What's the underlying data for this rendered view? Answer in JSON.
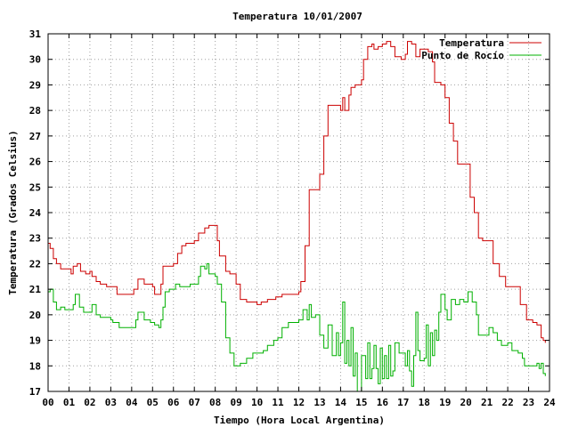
{
  "chart_data": {
    "type": "line",
    "title": "Temperatura 10/01/2007",
    "xlabel": "Tiempo (Hora Local Argentina)",
    "ylabel": "Temperatura (Grados Celsius)",
    "xlim": [
      0,
      24
    ],
    "ylim": [
      17,
      31
    ],
    "x_ticks": [
      0,
      1,
      2,
      3,
      4,
      5,
      6,
      7,
      8,
      9,
      10,
      11,
      12,
      13,
      14,
      15,
      16,
      17,
      18,
      19,
      20,
      21,
      22,
      23,
      24
    ],
    "x_tick_labels": [
      "00",
      "01",
      "02",
      "03",
      "04",
      "05",
      "06",
      "07",
      "08",
      "09",
      "10",
      "11",
      "12",
      "13",
      "14",
      "15",
      "16",
      "17",
      "18",
      "19",
      "20",
      "21",
      "22",
      "23",
      "24"
    ],
    "y_ticks": [
      17,
      18,
      19,
      20,
      21,
      22,
      23,
      24,
      25,
      26,
      27,
      28,
      29,
      30,
      31
    ],
    "grid": true,
    "legend_position": "top-right",
    "series": [
      {
        "name": "Temperatura",
        "color": "#cc0000",
        "points": [
          [
            0.0,
            22.8
          ],
          [
            0.1,
            22.6
          ],
          [
            0.25,
            22.2
          ],
          [
            0.4,
            22.0
          ],
          [
            0.6,
            21.8
          ],
          [
            0.9,
            21.8
          ],
          [
            1.1,
            21.6
          ],
          [
            1.2,
            21.9
          ],
          [
            1.4,
            22.0
          ],
          [
            1.55,
            21.7
          ],
          [
            1.8,
            21.6
          ],
          [
            2.0,
            21.7
          ],
          [
            2.1,
            21.5
          ],
          [
            2.3,
            21.3
          ],
          [
            2.5,
            21.2
          ],
          [
            2.8,
            21.1
          ],
          [
            3.1,
            21.1
          ],
          [
            3.3,
            20.8
          ],
          [
            3.7,
            20.8
          ],
          [
            4.0,
            20.8
          ],
          [
            4.1,
            21.0
          ],
          [
            4.3,
            21.4
          ],
          [
            4.6,
            21.2
          ],
          [
            5.0,
            21.1
          ],
          [
            5.1,
            20.8
          ],
          [
            5.3,
            20.8
          ],
          [
            5.4,
            21.2
          ],
          [
            5.5,
            21.9
          ],
          [
            5.7,
            21.9
          ],
          [
            6.0,
            22.0
          ],
          [
            6.2,
            22.4
          ],
          [
            6.4,
            22.7
          ],
          [
            6.6,
            22.8
          ],
          [
            7.0,
            22.9
          ],
          [
            7.2,
            23.2
          ],
          [
            7.5,
            23.4
          ],
          [
            7.7,
            23.5
          ],
          [
            8.0,
            23.5
          ],
          [
            8.1,
            22.9
          ],
          [
            8.2,
            22.3
          ],
          [
            8.5,
            21.7
          ],
          [
            8.7,
            21.6
          ],
          [
            9.0,
            21.2
          ],
          [
            9.2,
            20.6
          ],
          [
            9.5,
            20.5
          ],
          [
            9.8,
            20.5
          ],
          [
            10.0,
            20.4
          ],
          [
            10.2,
            20.5
          ],
          [
            10.5,
            20.6
          ],
          [
            10.9,
            20.7
          ],
          [
            11.2,
            20.8
          ],
          [
            11.7,
            20.8
          ],
          [
            12.0,
            20.9
          ],
          [
            12.1,
            21.3
          ],
          [
            12.3,
            22.7
          ],
          [
            12.5,
            24.9
          ],
          [
            12.9,
            24.9
          ],
          [
            13.0,
            25.5
          ],
          [
            13.2,
            27.0
          ],
          [
            13.4,
            28.2
          ],
          [
            13.8,
            28.2
          ],
          [
            14.0,
            28.0
          ],
          [
            14.1,
            28.5
          ],
          [
            14.2,
            28.0
          ],
          [
            14.4,
            28.6
          ],
          [
            14.5,
            28.9
          ],
          [
            14.7,
            29.0
          ],
          [
            15.0,
            29.2
          ],
          [
            15.1,
            30.0
          ],
          [
            15.3,
            30.5
          ],
          [
            15.5,
            30.6
          ],
          [
            15.6,
            30.4
          ],
          [
            15.8,
            30.5
          ],
          [
            16.0,
            30.6
          ],
          [
            16.2,
            30.7
          ],
          [
            16.4,
            30.5
          ],
          [
            16.6,
            30.1
          ],
          [
            16.9,
            30.0
          ],
          [
            17.1,
            30.2
          ],
          [
            17.2,
            30.7
          ],
          [
            17.4,
            30.6
          ],
          [
            17.6,
            30.1
          ],
          [
            17.8,
            30.4
          ],
          [
            18.0,
            30.4
          ],
          [
            18.2,
            30.3
          ],
          [
            18.4,
            29.9
          ],
          [
            18.5,
            29.1
          ],
          [
            18.8,
            29.0
          ],
          [
            19.0,
            28.5
          ],
          [
            19.2,
            27.5
          ],
          [
            19.4,
            26.8
          ],
          [
            19.6,
            25.9
          ],
          [
            19.8,
            25.9
          ],
          [
            20.0,
            25.9
          ],
          [
            20.2,
            24.6
          ],
          [
            20.4,
            24.0
          ],
          [
            20.6,
            23.0
          ],
          [
            20.8,
            22.9
          ],
          [
            21.0,
            22.9
          ],
          [
            21.3,
            22.0
          ],
          [
            21.6,
            21.5
          ],
          [
            21.9,
            21.1
          ],
          [
            22.3,
            21.1
          ],
          [
            22.6,
            20.4
          ],
          [
            22.9,
            19.8
          ],
          [
            23.2,
            19.7
          ],
          [
            23.4,
            19.6
          ],
          [
            23.6,
            19.1
          ],
          [
            23.7,
            19.0
          ],
          [
            23.8,
            18.9
          ]
        ]
      },
      {
        "name": "Punto de Rocío",
        "color": "#00b000",
        "points": [
          [
            0.0,
            20.9
          ],
          [
            0.1,
            21.0
          ],
          [
            0.25,
            20.5
          ],
          [
            0.4,
            20.2
          ],
          [
            0.6,
            20.3
          ],
          [
            0.8,
            20.2
          ],
          [
            1.0,
            20.2
          ],
          [
            1.2,
            20.4
          ],
          [
            1.3,
            20.8
          ],
          [
            1.5,
            20.3
          ],
          [
            1.7,
            20.1
          ],
          [
            2.0,
            20.1
          ],
          [
            2.1,
            20.4
          ],
          [
            2.3,
            20.0
          ],
          [
            2.5,
            19.9
          ],
          [
            2.7,
            19.9
          ],
          [
            3.0,
            19.8
          ],
          [
            3.1,
            19.7
          ],
          [
            3.4,
            19.5
          ],
          [
            3.8,
            19.5
          ],
          [
            4.0,
            19.5
          ],
          [
            4.2,
            19.8
          ],
          [
            4.3,
            20.1
          ],
          [
            4.5,
            20.1
          ],
          [
            4.6,
            19.8
          ],
          [
            4.9,
            19.7
          ],
          [
            5.1,
            19.6
          ],
          [
            5.3,
            19.5
          ],
          [
            5.4,
            19.8
          ],
          [
            5.5,
            20.3
          ],
          [
            5.6,
            20.9
          ],
          [
            5.8,
            21.0
          ],
          [
            6.0,
            21.0
          ],
          [
            6.1,
            21.2
          ],
          [
            6.3,
            21.1
          ],
          [
            6.5,
            21.1
          ],
          [
            6.8,
            21.2
          ],
          [
            7.0,
            21.2
          ],
          [
            7.2,
            21.5
          ],
          [
            7.3,
            21.9
          ],
          [
            7.5,
            21.8
          ],
          [
            7.6,
            22.0
          ],
          [
            7.7,
            21.6
          ],
          [
            8.0,
            21.5
          ],
          [
            8.1,
            21.2
          ],
          [
            8.3,
            20.5
          ],
          [
            8.5,
            19.1
          ],
          [
            8.7,
            18.5
          ],
          [
            8.9,
            18.0
          ],
          [
            9.2,
            18.1
          ],
          [
            9.5,
            18.3
          ],
          [
            9.8,
            18.5
          ],
          [
            10.0,
            18.5
          ],
          [
            10.3,
            18.6
          ],
          [
            10.5,
            18.8
          ],
          [
            10.8,
            19.0
          ],
          [
            11.0,
            19.1
          ],
          [
            11.2,
            19.5
          ],
          [
            11.5,
            19.7
          ],
          [
            11.8,
            19.7
          ],
          [
            12.0,
            19.8
          ],
          [
            12.2,
            20.2
          ],
          [
            12.4,
            19.8
          ],
          [
            12.5,
            20.4
          ],
          [
            12.6,
            19.9
          ],
          [
            12.8,
            20.0
          ],
          [
            13.0,
            19.2
          ],
          [
            13.2,
            18.7
          ],
          [
            13.4,
            19.6
          ],
          [
            13.6,
            18.4
          ],
          [
            13.8,
            19.3
          ],
          [
            13.9,
            18.4
          ],
          [
            14.0,
            18.9
          ],
          [
            14.1,
            20.5
          ],
          [
            14.2,
            18.1
          ],
          [
            14.3,
            19.0
          ],
          [
            14.4,
            18.0
          ],
          [
            14.5,
            19.5
          ],
          [
            14.6,
            17.6
          ],
          [
            14.7,
            18.5
          ],
          [
            14.8,
            17.0
          ],
          [
            15.0,
            18.4
          ],
          [
            15.2,
            17.5
          ],
          [
            15.3,
            18.9
          ],
          [
            15.4,
            17.5
          ],
          [
            15.5,
            17.9
          ],
          [
            15.6,
            18.8
          ],
          [
            15.7,
            17.9
          ],
          [
            15.8,
            17.3
          ],
          [
            15.9,
            18.7
          ],
          [
            16.0,
            17.5
          ],
          [
            16.1,
            18.4
          ],
          [
            16.2,
            17.5
          ],
          [
            16.3,
            18.8
          ],
          [
            16.4,
            17.6
          ],
          [
            16.5,
            17.8
          ],
          [
            16.6,
            18.9
          ],
          [
            16.8,
            18.5
          ],
          [
            17.0,
            18.5
          ],
          [
            17.1,
            18.0
          ],
          [
            17.2,
            18.6
          ],
          [
            17.3,
            17.8
          ],
          [
            17.4,
            17.2
          ],
          [
            17.5,
            18.4
          ],
          [
            17.6,
            20.1
          ],
          [
            17.7,
            18.6
          ],
          [
            17.8,
            18.2
          ],
          [
            18.0,
            18.3
          ],
          [
            18.1,
            19.6
          ],
          [
            18.2,
            18.0
          ],
          [
            18.3,
            19.3
          ],
          [
            18.4,
            18.4
          ],
          [
            18.5,
            19.4
          ],
          [
            18.6,
            19.0
          ],
          [
            18.7,
            20.1
          ],
          [
            18.8,
            20.8
          ],
          [
            19.0,
            20.2
          ],
          [
            19.1,
            19.8
          ],
          [
            19.3,
            20.6
          ],
          [
            19.5,
            20.4
          ],
          [
            19.7,
            20.6
          ],
          [
            19.9,
            20.5
          ],
          [
            20.1,
            20.9
          ],
          [
            20.3,
            20.5
          ],
          [
            20.5,
            20.0
          ],
          [
            20.6,
            19.2
          ],
          [
            20.8,
            19.2
          ],
          [
            21.0,
            19.2
          ],
          [
            21.1,
            19.5
          ],
          [
            21.3,
            19.3
          ],
          [
            21.5,
            19.0
          ],
          [
            21.7,
            18.8
          ],
          [
            22.0,
            18.9
          ],
          [
            22.2,
            18.6
          ],
          [
            22.5,
            18.5
          ],
          [
            22.7,
            18.3
          ],
          [
            22.8,
            18.0
          ],
          [
            23.1,
            18.0
          ],
          [
            23.3,
            18.0
          ],
          [
            23.4,
            18.1
          ],
          [
            23.5,
            17.9
          ],
          [
            23.6,
            18.1
          ],
          [
            23.7,
            17.7
          ],
          [
            23.8,
            17.6
          ]
        ]
      }
    ]
  }
}
